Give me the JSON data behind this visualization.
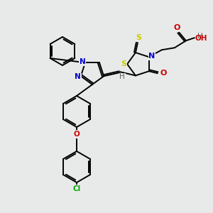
{
  "bg_color": "#e8eaea",
  "colors": {
    "C": "#000000",
    "N": "#0000cc",
    "O": "#cc0000",
    "S": "#cccc00",
    "Cl": "#00aa00",
    "H": "#606060",
    "bond": "#000000"
  },
  "lw": 1.4,
  "fs": 7.5
}
